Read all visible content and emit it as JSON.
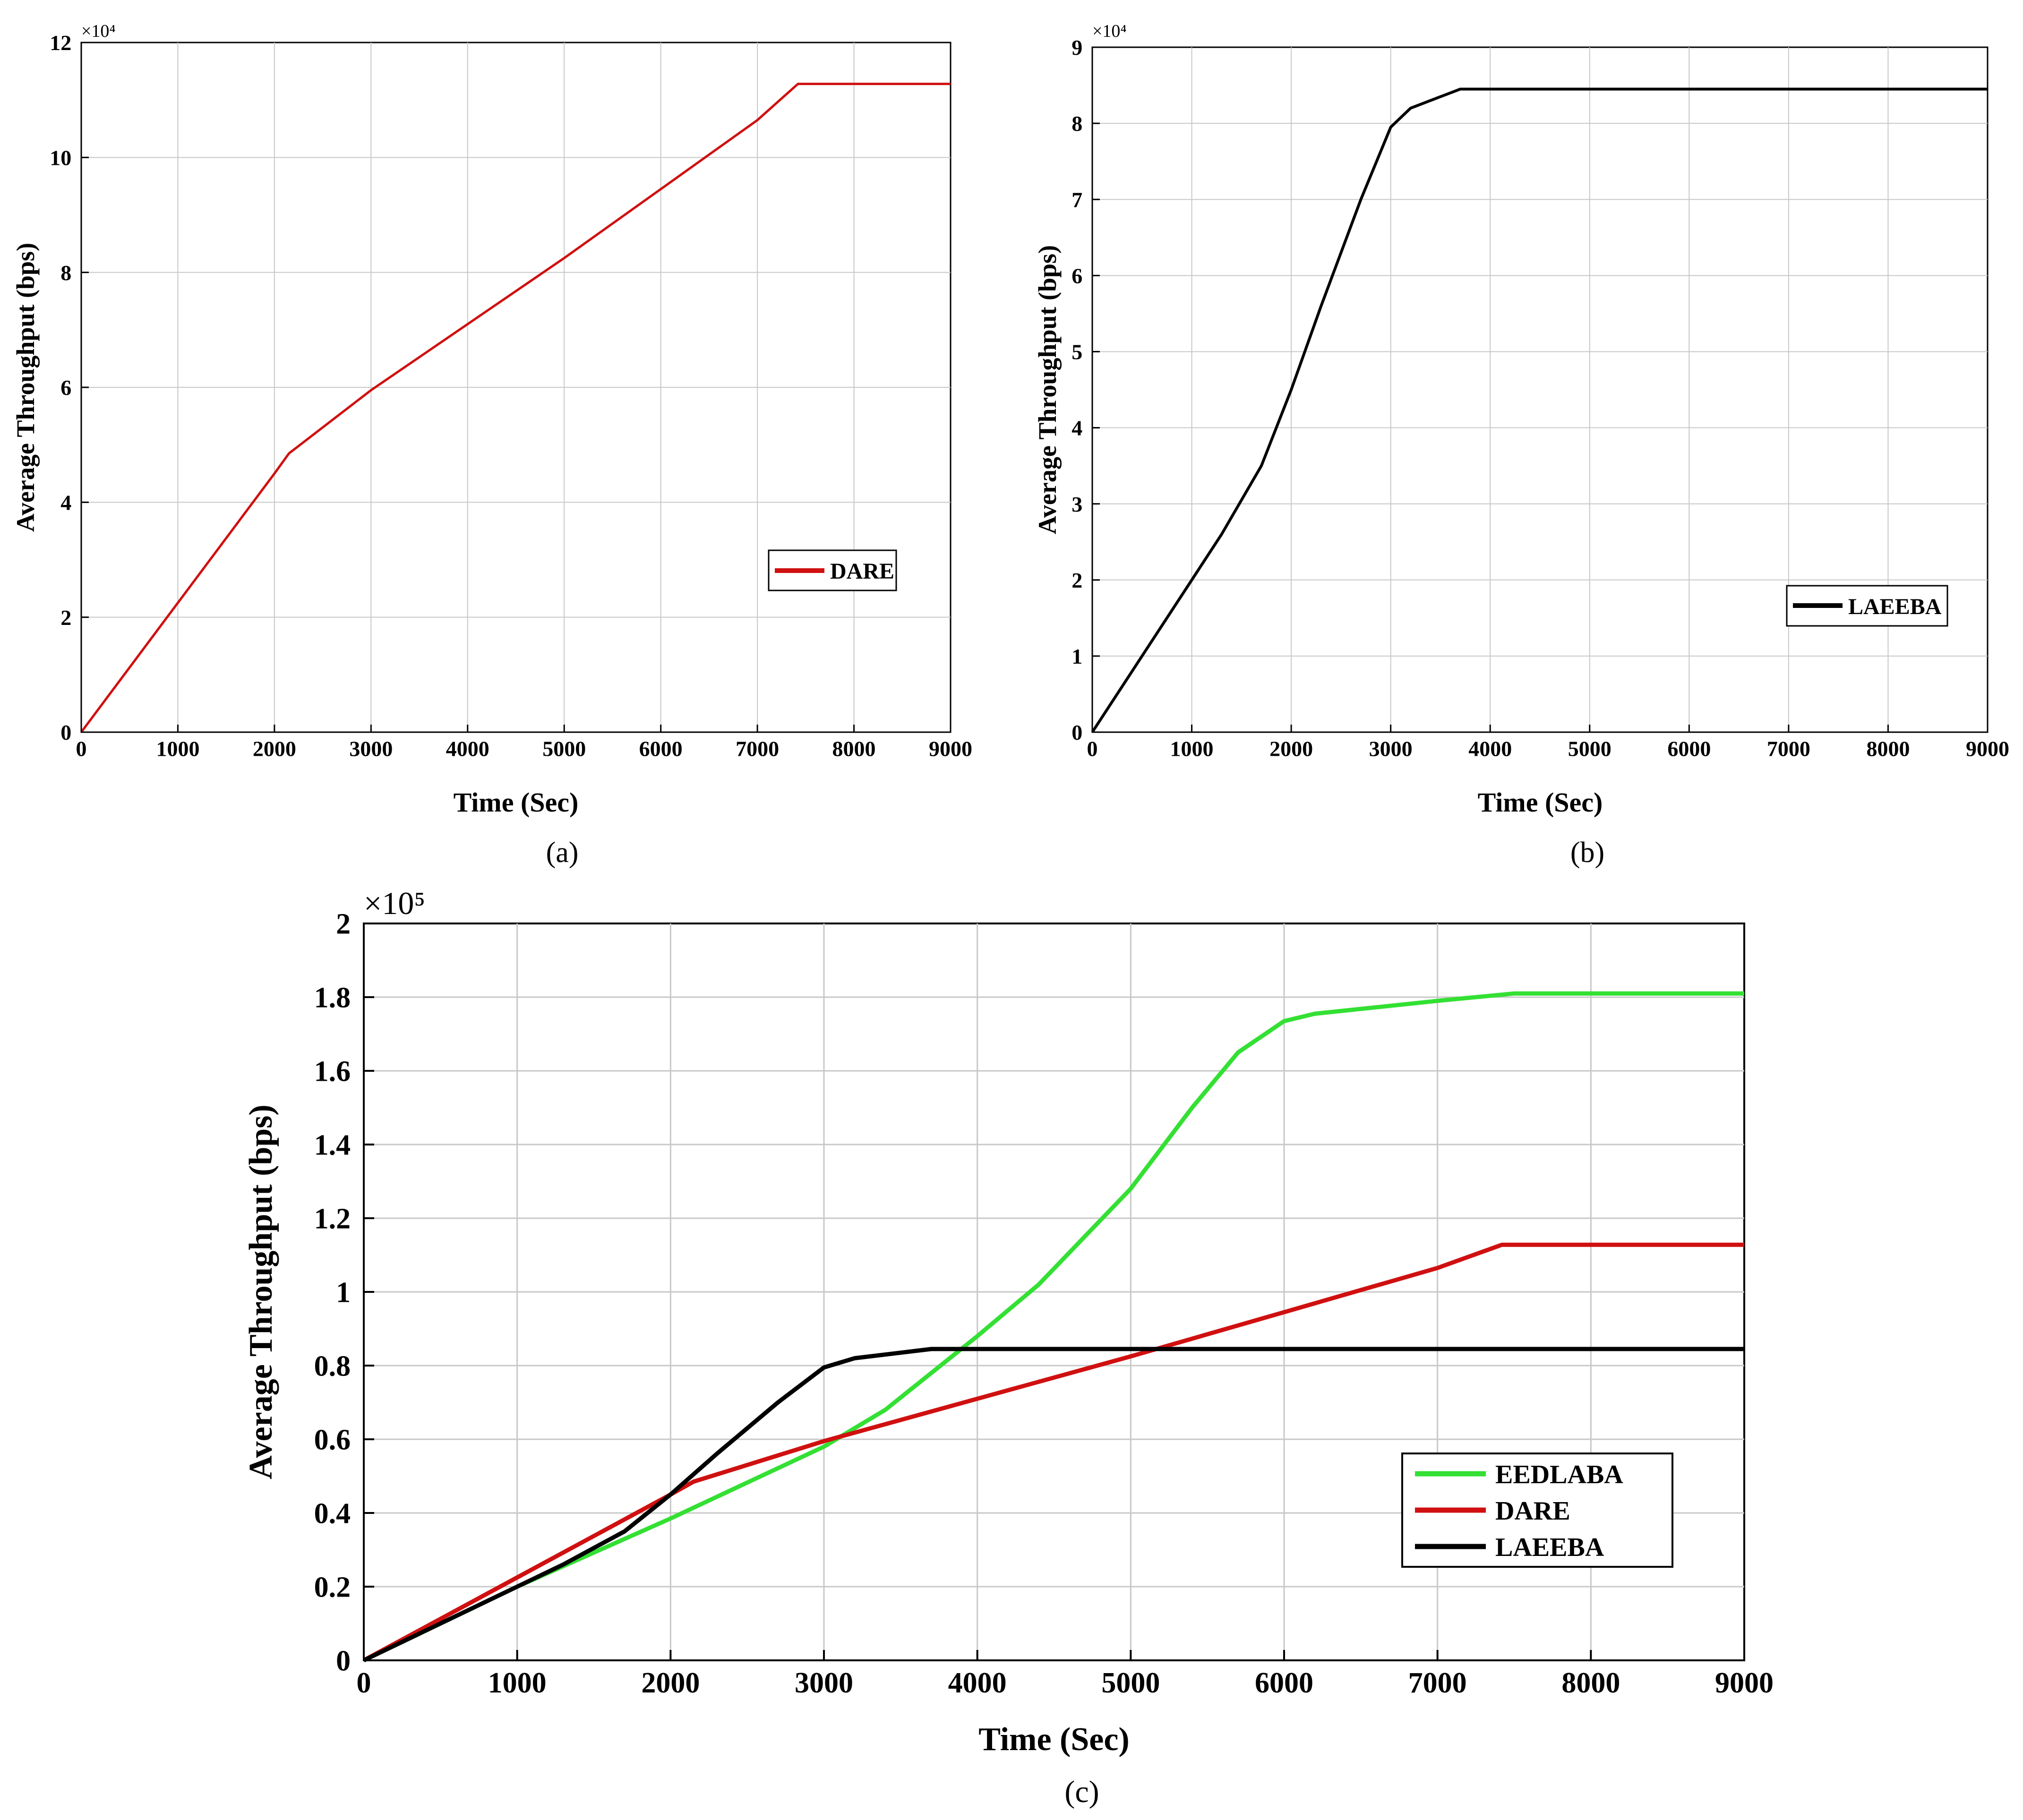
{
  "chart_data": [
    {
      "panel": "a",
      "caption": "(a)",
      "type": "line",
      "xlabel": "Time (Sec)",
      "ylabel": "Average Throughput (bps)",
      "multiplier_label": "×10⁴",
      "xlim": [
        0,
        9000
      ],
      "ylim": [
        0,
        12
      ],
      "xticks": [
        0,
        1000,
        2000,
        3000,
        4000,
        5000,
        6000,
        7000,
        8000,
        9000
      ],
      "yticks": [
        0,
        2,
        4,
        6,
        8,
        10,
        12
      ],
      "x_tick_labels": [
        "0",
        "1000",
        "2000",
        "3000",
        "4000",
        "5000",
        "6000",
        "7000",
        "8000",
        "9000"
      ],
      "y_tick_labels": [
        "0",
        "2",
        "4",
        "6",
        "8",
        "10",
        "12"
      ],
      "grid": true,
      "legend_position": "right",
      "series": [
        {
          "name": "DARE",
          "color": "#d01010",
          "points": [
            [
              0,
              0
            ],
            [
              1000,
              2.25
            ],
            [
              2000,
              4.5
            ],
            [
              2150,
              4.85
            ],
            [
              3000,
              5.95
            ],
            [
              4000,
              7.1
            ],
            [
              5000,
              8.25
            ],
            [
              6000,
              9.45
            ],
            [
              7000,
              10.65
            ],
            [
              7420,
              11.28
            ],
            [
              9000,
              11.28
            ]
          ]
        }
      ]
    },
    {
      "panel": "b",
      "caption": "(b)",
      "type": "line",
      "xlabel": "Time (Sec)",
      "ylabel": "Average Throughput (bps)",
      "multiplier_label": "×10⁴",
      "xlim": [
        0,
        9000
      ],
      "ylim": [
        0,
        9
      ],
      "xticks": [
        0,
        1000,
        2000,
        3000,
        4000,
        5000,
        6000,
        7000,
        8000,
        9000
      ],
      "yticks": [
        0,
        1,
        2,
        3,
        4,
        5,
        6,
        7,
        8,
        9
      ],
      "x_tick_labels": [
        "0",
        "1000",
        "2000",
        "3000",
        "4000",
        "5000",
        "6000",
        "7000",
        "8000",
        "9000"
      ],
      "y_tick_labels": [
        "0",
        "1",
        "2",
        "3",
        "4",
        "5",
        "6",
        "7",
        "8",
        "9"
      ],
      "grid": true,
      "legend_position": "bottom-right",
      "series": [
        {
          "name": "LAEEBA",
          "color": "#000000",
          "points": [
            [
              0,
              0
            ],
            [
              500,
              1.0
            ],
            [
              1000,
              2.0
            ],
            [
              1300,
              2.6
            ],
            [
              1700,
              3.5
            ],
            [
              2000,
              4.5
            ],
            [
              2300,
              5.6
            ],
            [
              2700,
              7.0
            ],
            [
              3000,
              7.95
            ],
            [
              3200,
              8.2
            ],
            [
              3500,
              8.35
            ],
            [
              3700,
              8.45
            ],
            [
              9000,
              8.45
            ]
          ]
        }
      ]
    },
    {
      "panel": "c",
      "caption": "(c)",
      "type": "line",
      "xlabel": "Time (Sec)",
      "ylabel": "Average Throughput (bps)",
      "multiplier_label": "×10⁵",
      "xlim": [
        0,
        9000
      ],
      "ylim": [
        0,
        2
      ],
      "xticks": [
        0,
        1000,
        2000,
        3000,
        4000,
        5000,
        6000,
        7000,
        8000,
        9000
      ],
      "yticks": [
        0,
        0.2,
        0.4,
        0.6,
        0.8,
        1.0,
        1.2,
        1.4,
        1.6,
        1.8,
        2.0
      ],
      "x_tick_labels": [
        "0",
        "1000",
        "2000",
        "3000",
        "4000",
        "5000",
        "6000",
        "7000",
        "8000",
        "9000"
      ],
      "y_tick_labels": [
        "0",
        "0.2",
        "0.4",
        "0.6",
        "0.8",
        "1",
        "1.2",
        "1.4",
        "1.6",
        "1.8",
        "2"
      ],
      "grid": true,
      "legend_position": "bottom-right",
      "series": [
        {
          "name": "EEDLABA",
          "color": "#33e033",
          "points": [
            [
              0,
              0
            ],
            [
              1000,
              0.2
            ],
            [
              2000,
              0.385
            ],
            [
              3000,
              0.58
            ],
            [
              3400,
              0.68
            ],
            [
              4000,
              0.88
            ],
            [
              4400,
              1.02
            ],
            [
              5000,
              1.28
            ],
            [
              5400,
              1.5
            ],
            [
              5700,
              1.65
            ],
            [
              6000,
              1.735
            ],
            [
              6200,
              1.755
            ],
            [
              7000,
              1.79
            ],
            [
              7500,
              1.81
            ],
            [
              9000,
              1.81
            ]
          ]
        },
        {
          "name": "DARE",
          "color": "#d01010",
          "points": [
            [
              0,
              0
            ],
            [
              1000,
              0.225
            ],
            [
              2000,
              0.45
            ],
            [
              2150,
              0.485
            ],
            [
              3000,
              0.595
            ],
            [
              4000,
              0.71
            ],
            [
              5000,
              0.825
            ],
            [
              6000,
              0.945
            ],
            [
              7000,
              1.065
            ],
            [
              7420,
              1.128
            ],
            [
              9000,
              1.128
            ]
          ]
        },
        {
          "name": "LAEEBA",
          "color": "#000000",
          "points": [
            [
              0,
              0
            ],
            [
              500,
              0.1
            ],
            [
              1000,
              0.2
            ],
            [
              1300,
              0.26
            ],
            [
              1700,
              0.35
            ],
            [
              2000,
              0.45
            ],
            [
              2300,
              0.56
            ],
            [
              2700,
              0.7
            ],
            [
              3000,
              0.795
            ],
            [
              3200,
              0.82
            ],
            [
              3500,
              0.835
            ],
            [
              3700,
              0.845
            ],
            [
              9000,
              0.845
            ]
          ]
        }
      ]
    }
  ]
}
